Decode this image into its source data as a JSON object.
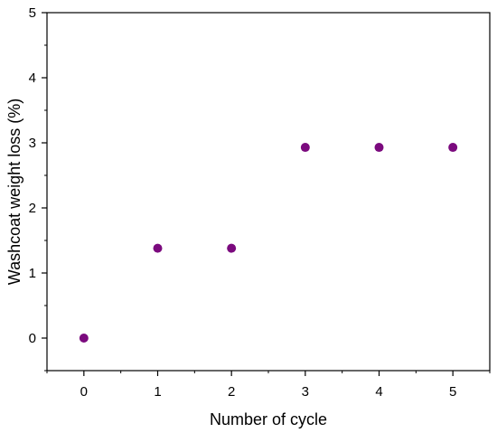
{
  "chart_data": {
    "type": "scatter",
    "title": "",
    "xlabel": "Number of cycle",
    "ylabel": "Washcoat weight loss (%)",
    "xlim": [
      -0.5,
      5.5
    ],
    "ylim": [
      -0.5,
      5
    ],
    "x_ticks": [
      "0",
      "1",
      "2",
      "3",
      "4",
      "5"
    ],
    "y_ticks": [
      "0",
      "1",
      "2",
      "3",
      "4",
      "5"
    ],
    "grid": false,
    "marker_color": "#7b0a7e",
    "series": [
      {
        "x": [
          0,
          1,
          2,
          3,
          4,
          5
        ],
        "y": [
          0,
          1.38,
          1.38,
          2.93,
          2.93,
          2.93
        ]
      }
    ]
  }
}
